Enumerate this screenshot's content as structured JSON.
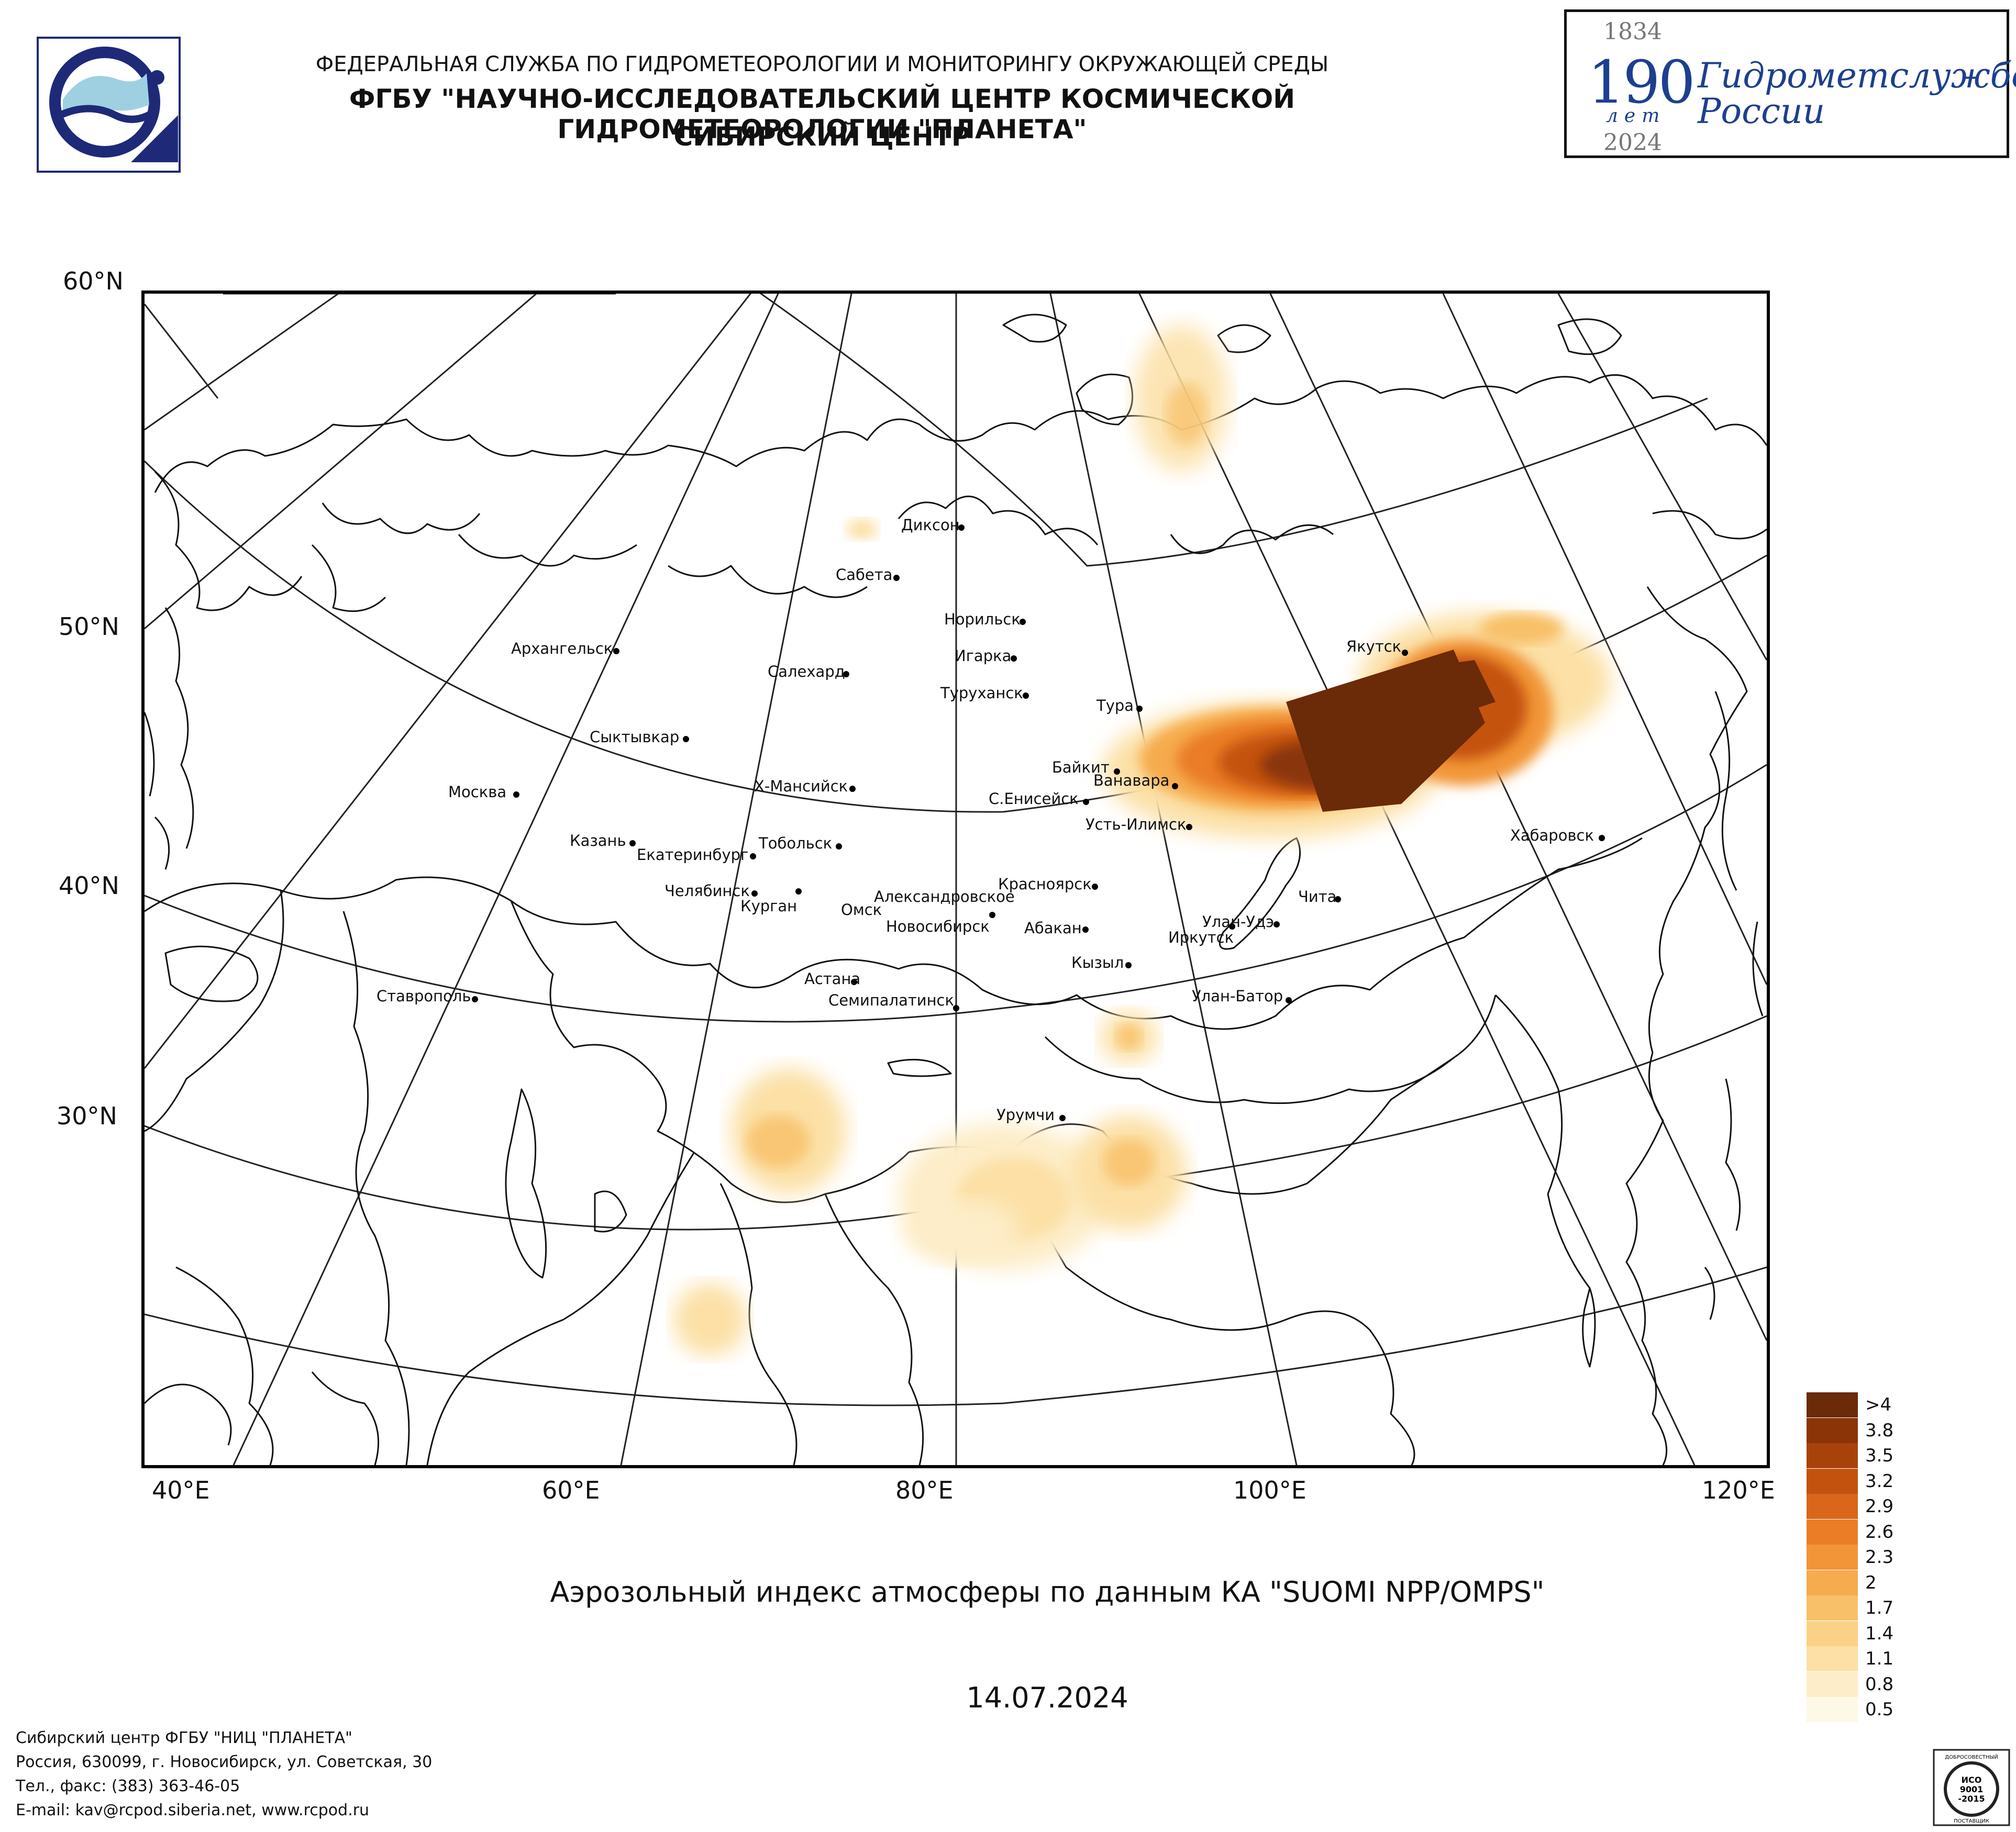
{
  "header": {
    "line1": "ФЕДЕРАЛЬНАЯ СЛУЖБА ПО ГИДРОМЕТЕОРОЛОГИИ И МОНИТОРИНГУ ОКРУЖАЮЩЕЙ СРЕДЫ",
    "line2": "ФГБУ \"НАУЧНО-ИССЛЕДОВАТЕЛЬСКИЙ ЦЕНТР КОСМИЧЕСКОЙ ГИДРОМЕТЕОРОЛОГИИ \"ПЛАНЕТА\"",
    "line3": "СИБИРСКИЙ ЦЕНТР"
  },
  "anniversary": {
    "year_start": "1834",
    "number": "190",
    "unit": "лет",
    "year_end": "2024",
    "text_line1": "Гидрометслужбе",
    "text_line2": "России"
  },
  "map": {
    "lat_labels": [
      "60°N",
      "50°N",
      "40°N",
      "30°N"
    ],
    "lon_labels": [
      "40°E",
      "60°E",
      "80°E",
      "100°E",
      "120°E"
    ],
    "cities": [
      "Диксон",
      "Сабета",
      "Норильск",
      "Игарка",
      "Салехард",
      "Туруханск",
      "Якутск",
      "Тура",
      "Архангельск",
      "Сыктывкар",
      "Байкит",
      "Ванавара",
      "Москва",
      "Х-Мансийск",
      "С.Енисейск",
      "Усть-Илимск",
      "Казань",
      "Екатеринбург",
      "Тобольск",
      "Хабаровск",
      "Челябинск",
      "Курган",
      "Александровское",
      "Омск",
      "Новосибирск",
      "Красноярск",
      "Абакан",
      "Чита",
      "Улан-Удэ",
      "Иркутск",
      "Кызыл",
      "Астана",
      "Ставрополь",
      "Семипалатинск",
      "Улан-Батор",
      "Урумчи"
    ]
  },
  "legend": {
    "labels": [
      ">4",
      "3.8",
      "3.5",
      "3.2",
      "2.9",
      "2.6",
      "2.3",
      "2",
      "1.7",
      "1.4",
      "1.1",
      "0.8",
      "0.5"
    ],
    "colors": [
      "#6b2a08",
      "#8a3408",
      "#a8420b",
      "#c4520f",
      "#d9661a",
      "#ea7d26",
      "#f29538",
      "#f6ab4e",
      "#f8c068",
      "#fad186",
      "#fce0a6",
      "#fdedc8",
      "#fef8e6"
    ]
  },
  "map_title": "Аэрозольный индекс атмосферы по данным КА \"SUOMI NPP/OMPS\"",
  "date": "14.07.2024",
  "footer": {
    "line1": "Сибирский центр ФГБУ \"НИЦ \"ПЛАНЕТА\"",
    "line2": "Россия, 630099, г. Новосибирск, ул. Советская, 30",
    "line3": "Тел., факс: (383) 363-46-05",
    "line4": "E-mail: kav@rcpod.siberia.net, www.rcpod.ru"
  },
  "cert": {
    "top": "ДОБРОСОВЕСТНЫЙ",
    "mid1": "ИСО",
    "mid2": "9001",
    "mid3": "-2015",
    "bottom": "ПОСТАВЩИК"
  }
}
